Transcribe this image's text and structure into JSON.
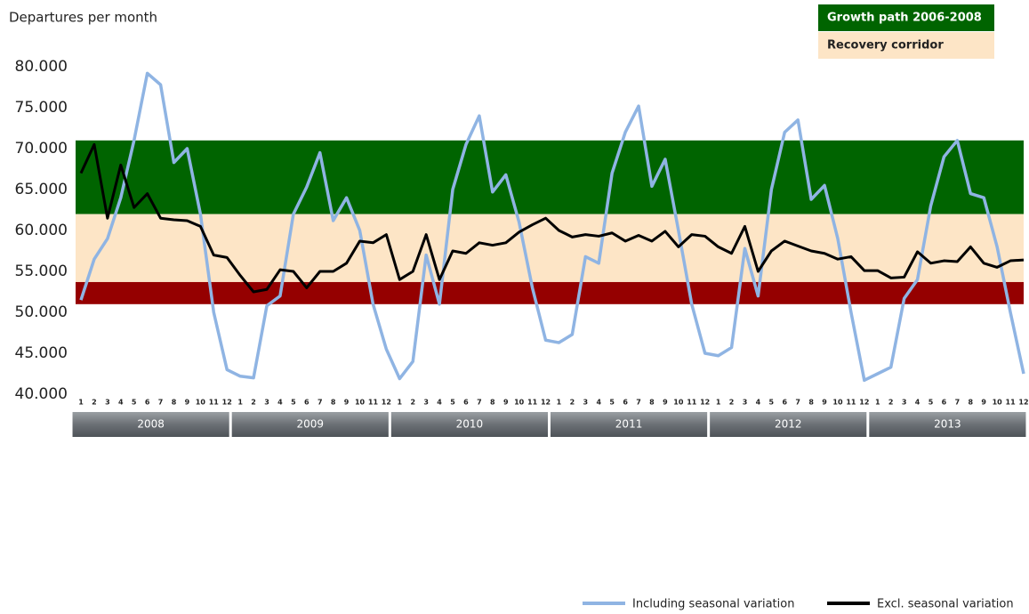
{
  "chart_data": {
    "type": "line",
    "y_label": "Departures per month",
    "ylim": [
      40000,
      80000
    ],
    "yticks": [
      {
        "value": 40000,
        "label": "40.000"
      },
      {
        "value": 45000,
        "label": "45.000"
      },
      {
        "value": 50000,
        "label": "50.000"
      },
      {
        "value": 55000,
        "label": "55.000"
      },
      {
        "value": 60000,
        "label": "60.000"
      },
      {
        "value": 65000,
        "label": "65.000"
      },
      {
        "value": 70000,
        "label": "70.000"
      },
      {
        "value": 75000,
        "label": "75.000"
      },
      {
        "value": 80000,
        "label": "80.000"
      }
    ],
    "categories": [
      "1",
      "2",
      "3",
      "4",
      "5",
      "6",
      "7",
      "8",
      "9",
      "10",
      "11",
      "12",
      "1",
      "2",
      "3",
      "4",
      "5",
      "6",
      "7",
      "8",
      "9",
      "10",
      "11",
      "12",
      "1",
      "2",
      "3",
      "4",
      "5",
      "6",
      "7",
      "8",
      "9",
      "10",
      "11",
      "12",
      "1",
      "2",
      "3",
      "4",
      "5",
      "6",
      "7",
      "8",
      "9",
      "10",
      "11",
      "12",
      "1",
      "2",
      "3",
      "4",
      "5",
      "6",
      "7",
      "8",
      "9",
      "10",
      "11",
      "12",
      "1",
      "2",
      "3",
      "4",
      "5",
      "6",
      "7",
      "8",
      "9",
      "10",
      "11",
      "12"
    ],
    "years": [
      "2008",
      "2009",
      "2010",
      "2011",
      "2012",
      "2013"
    ],
    "bands": [
      {
        "name": "Growth path 2006-2008",
        "from": 62000,
        "to": 71000,
        "color": "#006400"
      },
      {
        "name": "Recovery corridor",
        "from": 53700,
        "to": 62000,
        "color": "#fde5c6"
      },
      {
        "from": 51000,
        "to": 53700,
        "color": "#950000"
      }
    ],
    "series": [
      {
        "name": "Including seasonal variation",
        "color": "#8fb4e3",
        "values": [
          51500,
          56500,
          59000,
          64000,
          71000,
          79200,
          77800,
          68300,
          70000,
          62000,
          50000,
          43000,
          42200,
          42000,
          50800,
          52000,
          62000,
          65300,
          69500,
          61200,
          64000,
          60000,
          51000,
          45500,
          41900,
          44000,
          57000,
          51000,
          65000,
          70500,
          74000,
          64700,
          66800,
          61000,
          53000,
          46600,
          46300,
          47300,
          56800,
          56000,
          67000,
          72000,
          75200,
          65400,
          68700,
          60000,
          51000,
          45000,
          44700,
          45700,
          57800,
          52000,
          65000,
          72000,
          73500,
          63800,
          65500,
          59000,
          50000,
          41700,
          42500,
          43300,
          51700,
          54000,
          63000,
          69000,
          71000,
          64500,
          64000,
          58000,
          50000,
          42500
        ]
      },
      {
        "name": "Excl. seasonal variation",
        "color": "#000000",
        "values": [
          67000,
          70500,
          61500,
          68000,
          62800,
          64500,
          61500,
          61300,
          61200,
          60500,
          57000,
          56700,
          54500,
          52500,
          52800,
          55200,
          55000,
          53000,
          55000,
          55000,
          56000,
          58700,
          58500,
          59500,
          54000,
          55000,
          59500,
          54000,
          57500,
          57200,
          58500,
          58200,
          58500,
          59800,
          60700,
          61500,
          60000,
          59200,
          59500,
          59300,
          59700,
          58700,
          59400,
          58700,
          59900,
          58000,
          59500,
          59300,
          58000,
          57200,
          60500,
          55000,
          57500,
          58700,
          58100,
          57500,
          57200,
          56500,
          56800,
          55100,
          55100,
          54200,
          54300,
          57400,
          56000,
          56300,
          56200,
          58000,
          56000,
          55500,
          56300,
          56400
        ]
      }
    ]
  }
}
